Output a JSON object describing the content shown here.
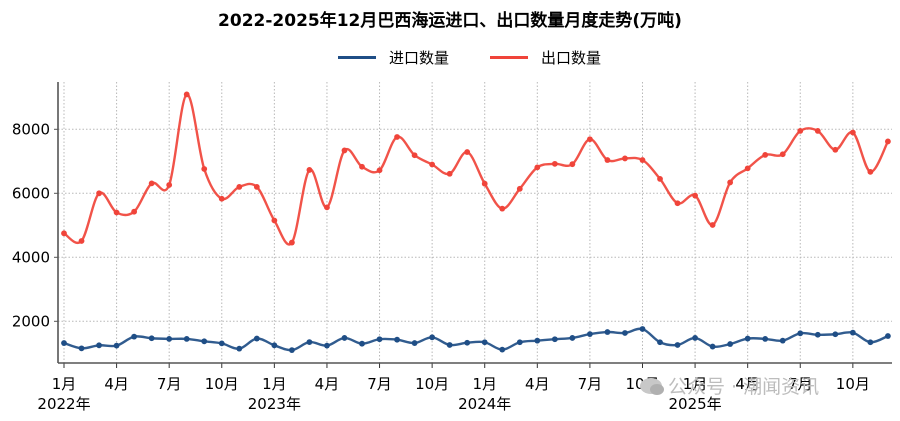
{
  "title": "2022-2025年12月巴西海运进口、出口数量月度走势(万吨)",
  "legend": [
    {
      "label": "进口数量",
      "color": "#1f4e86"
    },
    {
      "label": "出口数量",
      "color": "#f0443a"
    }
  ],
  "watermark": {
    "text": "公众号 · 潮闻资讯",
    "icon": "wechat-icon"
  },
  "chart_data": {
    "type": "line",
    "title": "2022-2025年12月巴西海运进口、出口数量月度走势(万吨)",
    "xlabel": "",
    "ylabel": "",
    "ylim": [
      700,
      9500
    ],
    "yticks": [
      2000,
      4000,
      6000,
      8000
    ],
    "grid": true,
    "legend_position": "top-center",
    "x": [
      "2022-01",
      "2022-02",
      "2022-03",
      "2022-04",
      "2022-05",
      "2022-06",
      "2022-07",
      "2022-08",
      "2022-09",
      "2022-10",
      "2022-11",
      "2022-12",
      "2023-01",
      "2023-02",
      "2023-03",
      "2023-04",
      "2023-05",
      "2023-06",
      "2023-07",
      "2023-08",
      "2023-09",
      "2023-10",
      "2023-11",
      "2023-12",
      "2024-01",
      "2024-02",
      "2024-03",
      "2024-04",
      "2024-05",
      "2024-06",
      "2024-07",
      "2024-08",
      "2024-09",
      "2024-10",
      "2024-11",
      "2024-12",
      "2025-01",
      "2025-02",
      "2025-03",
      "2025-04",
      "2025-05",
      "2025-06",
      "2025-07",
      "2025-08",
      "2025-09",
      "2025-10",
      "2025-11",
      "2025-12"
    ],
    "xticks": [
      {
        "index": 0,
        "label": "1月",
        "year": "2022年"
      },
      {
        "index": 3,
        "label": "4月"
      },
      {
        "index": 6,
        "label": "7月"
      },
      {
        "index": 9,
        "label": "10月"
      },
      {
        "index": 12,
        "label": "1月",
        "year": "2023年"
      },
      {
        "index": 15,
        "label": "4月"
      },
      {
        "index": 18,
        "label": "7月"
      },
      {
        "index": 21,
        "label": "10月"
      },
      {
        "index": 24,
        "label": "1月",
        "year": "2024年"
      },
      {
        "index": 27,
        "label": "4月"
      },
      {
        "index": 30,
        "label": "7月"
      },
      {
        "index": 33,
        "label": "10月"
      },
      {
        "index": 36,
        "label": "1月",
        "year": "2025年"
      },
      {
        "index": 39,
        "label": "4月"
      },
      {
        "index": 42,
        "label": "7月"
      },
      {
        "index": 45,
        "label": "10月"
      }
    ],
    "series": [
      {
        "name": "进口数量",
        "color": "#1f4e86",
        "values": [
          1320,
          1155,
          1250,
          1240,
          1520,
          1470,
          1450,
          1450,
          1375,
          1310,
          1145,
          1460,
          1250,
          1100,
          1350,
          1240,
          1480,
          1300,
          1440,
          1425,
          1320,
          1500,
          1260,
          1330,
          1345,
          1115,
          1345,
          1395,
          1440,
          1480,
          1600,
          1665,
          1635,
          1760,
          1345,
          1260,
          1480,
          1210,
          1290,
          1460,
          1450,
          1395,
          1625,
          1580,
          1595,
          1645,
          1345,
          1540
        ]
      },
      {
        "name": "出口数量",
        "color": "#f0443a",
        "values": [
          4750,
          4510,
          6000,
          5400,
          5425,
          6310,
          6260,
          9090,
          6760,
          5830,
          6200,
          6200,
          5150,
          4460,
          6730,
          5560,
          7340,
          6830,
          6720,
          7760,
          7190,
          6900,
          6610,
          7290,
          6300,
          5520,
          6140,
          6810,
          6920,
          6910,
          7690,
          7040,
          7090,
          7040,
          6450,
          5690,
          5930,
          5010,
          6340,
          6780,
          7200,
          7220,
          7950,
          7950,
          7360,
          7900,
          6670,
          7620
        ]
      }
    ]
  }
}
